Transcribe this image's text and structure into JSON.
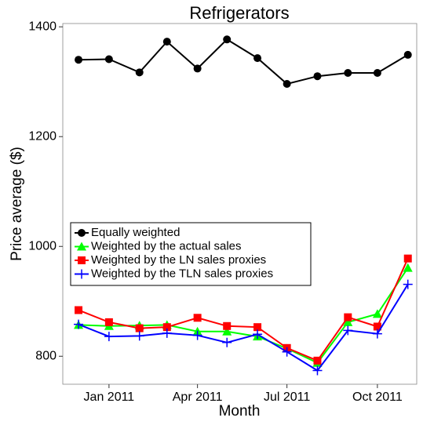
{
  "chart_data": {
    "type": "line",
    "title": "Refrigerators",
    "x_label": "Month",
    "y_label": "Price average ($)",
    "x": [
      "2010-12",
      "2011-01",
      "2011-02",
      "2011-03",
      "2011-04",
      "2011-05",
      "2011-06",
      "2011-07",
      "2011-08",
      "2011-09",
      "2011-10",
      "2011-11"
    ],
    "xlim": [
      "2010-11-15",
      "2011-11-10"
    ],
    "xticks": [
      {
        "value": "2011-01",
        "label": "Jan 2011"
      },
      {
        "value": "2011-04",
        "label": "Apr 2011"
      },
      {
        "value": "2011-07",
        "label": "Jul 2011"
      },
      {
        "value": "2011-10",
        "label": "Oct 2011"
      }
    ],
    "ylim": [
      749,
      1406
    ],
    "yticks": [
      800,
      1000,
      1200,
      1400
    ],
    "series": [
      {
        "name": "Equally weighted",
        "color": "#000000",
        "marker": "circle",
        "values": [
          1340,
          1341,
          1317,
          1373,
          1324,
          1377,
          1343,
          1296,
          1310,
          1316,
          1316,
          1349
        ]
      },
      {
        "name": "Weighted by the actual sales",
        "color": "#00ff00",
        "marker": "triangle",
        "values": [
          857,
          855,
          856,
          857,
          845,
          845,
          836,
          814,
          788,
          862,
          877,
          961
        ]
      },
      {
        "name": "Weighted by the LN sales proxies",
        "color": "#ff0000",
        "marker": "square",
        "values": [
          884,
          862,
          851,
          853,
          870,
          855,
          853,
          815,
          792,
          871,
          854,
          978
        ]
      },
      {
        "name": "Weighted by the TLN sales proxies",
        "color": "#0000ff",
        "marker": "plus",
        "values": [
          858,
          836,
          837,
          842,
          838,
          825,
          840,
          808,
          774,
          847,
          841,
          931
        ]
      }
    ]
  }
}
